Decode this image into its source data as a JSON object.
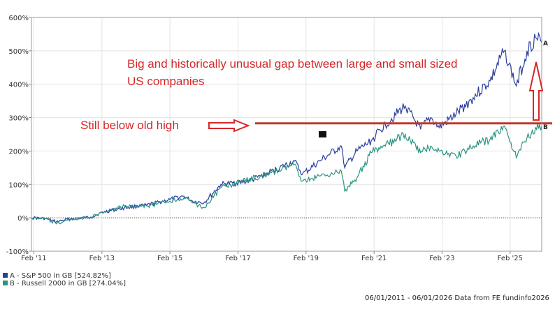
{
  "chart_data": {
    "type": "line",
    "title": "",
    "xlabel": "",
    "ylabel": "",
    "ylim": [
      -100,
      600
    ],
    "y_ticks": [
      "-100%",
      "0%",
      "100%",
      "200%",
      "300%",
      "400%",
      "500%",
      "600%"
    ],
    "x_ticks": [
      "Feb '11",
      "Feb '13",
      "Feb '15",
      "Feb '17",
      "Feb '19",
      "Feb '21",
      "Feb '23",
      "Feb '25"
    ],
    "x_range": [
      "2011-01-06",
      "2026-01-06"
    ],
    "grid": true,
    "legend_position": "bottom-left",
    "series": [
      {
        "name": "A - S&P 500 in GB [524.82%]",
        "marker": "A",
        "color": "#2b3f9e",
        "points": [
          [
            "2011-01-06",
            0
          ],
          [
            "2011-06-01",
            -2
          ],
          [
            "2011-10-01",
            -12
          ],
          [
            "2012-03-01",
            -3
          ],
          [
            "2012-10-01",
            2
          ],
          [
            "2013-03-01",
            18
          ],
          [
            "2013-10-01",
            30
          ],
          [
            "2014-06-01",
            38
          ],
          [
            "2015-02-01",
            55
          ],
          [
            "2015-07-01",
            65
          ],
          [
            "2015-10-01",
            50
          ],
          [
            "2016-02-01",
            45
          ],
          [
            "2016-08-01",
            100
          ],
          [
            "2017-06-01",
            110
          ],
          [
            "2018-01-01",
            135
          ],
          [
            "2018-10-01",
            170
          ],
          [
            "2018-12-24",
            130
          ],
          [
            "2019-07-01",
            170
          ],
          [
            "2020-02-15",
            215
          ],
          [
            "2020-03-23",
            150
          ],
          [
            "2020-08-01",
            200
          ],
          [
            "2021-01-01",
            230
          ],
          [
            "2021-06-01",
            280
          ],
          [
            "2022-01-01",
            335
          ],
          [
            "2022-06-15",
            265
          ],
          [
            "2022-10-01",
            300
          ],
          [
            "2023-01-01",
            270
          ],
          [
            "2023-07-01",
            310
          ],
          [
            "2024-01-01",
            360
          ],
          [
            "2024-07-01",
            410
          ],
          [
            "2024-12-01",
            500
          ],
          [
            "2025-04-08",
            395
          ],
          [
            "2025-08-01",
            500
          ],
          [
            "2025-11-01",
            540
          ],
          [
            "2026-01-06",
            525
          ]
        ]
      },
      {
        "name": "B - Russell 2000 in GB [274.04%]",
        "marker": "B",
        "color": "#2a9480",
        "points": [
          [
            "2011-01-06",
            0
          ],
          [
            "2011-06-01",
            -2
          ],
          [
            "2011-10-01",
            -18
          ],
          [
            "2012-03-01",
            -5
          ],
          [
            "2012-10-01",
            0
          ],
          [
            "2013-03-01",
            20
          ],
          [
            "2013-10-01",
            35
          ],
          [
            "2014-06-01",
            35
          ],
          [
            "2015-02-01",
            50
          ],
          [
            "2015-07-01",
            60
          ],
          [
            "2015-10-01",
            45
          ],
          [
            "2016-02-01",
            30
          ],
          [
            "2016-08-01",
            90
          ],
          [
            "2017-06-01",
            115
          ],
          [
            "2018-01-01",
            130
          ],
          [
            "2018-10-01",
            160
          ],
          [
            "2018-12-24",
            110
          ],
          [
            "2019-07-01",
            125
          ],
          [
            "2020-02-15",
            140
          ],
          [
            "2020-03-23",
            80
          ],
          [
            "2020-08-01",
            120
          ],
          [
            "2021-01-01",
            195
          ],
          [
            "2021-06-01",
            215
          ],
          [
            "2022-01-01",
            250
          ],
          [
            "2022-06-15",
            195
          ],
          [
            "2022-10-01",
            215
          ],
          [
            "2023-01-01",
            200
          ],
          [
            "2023-07-01",
            185
          ],
          [
            "2024-01-01",
            215
          ],
          [
            "2024-07-01",
            235
          ],
          [
            "2024-12-01",
            275
          ],
          [
            "2025-04-08",
            180
          ],
          [
            "2025-08-01",
            240
          ],
          [
            "2025-11-01",
            270
          ],
          [
            "2026-01-06",
            274
          ]
        ]
      }
    ],
    "reference_line": {
      "y": 283,
      "color": "#c0392b"
    },
    "zero_line": {
      "y": 0,
      "style": "dotted",
      "color": "#444444"
    },
    "annotations": [
      {
        "text_lines": [
          "Big and historically unusual gap between large and small sized",
          "US companies"
        ],
        "color": "#d62728"
      },
      {
        "text": "Still below old high",
        "color": "#d62728"
      }
    ],
    "footer": "06/01/2011 - 06/01/2026 Data from FE fundinfo2026"
  }
}
